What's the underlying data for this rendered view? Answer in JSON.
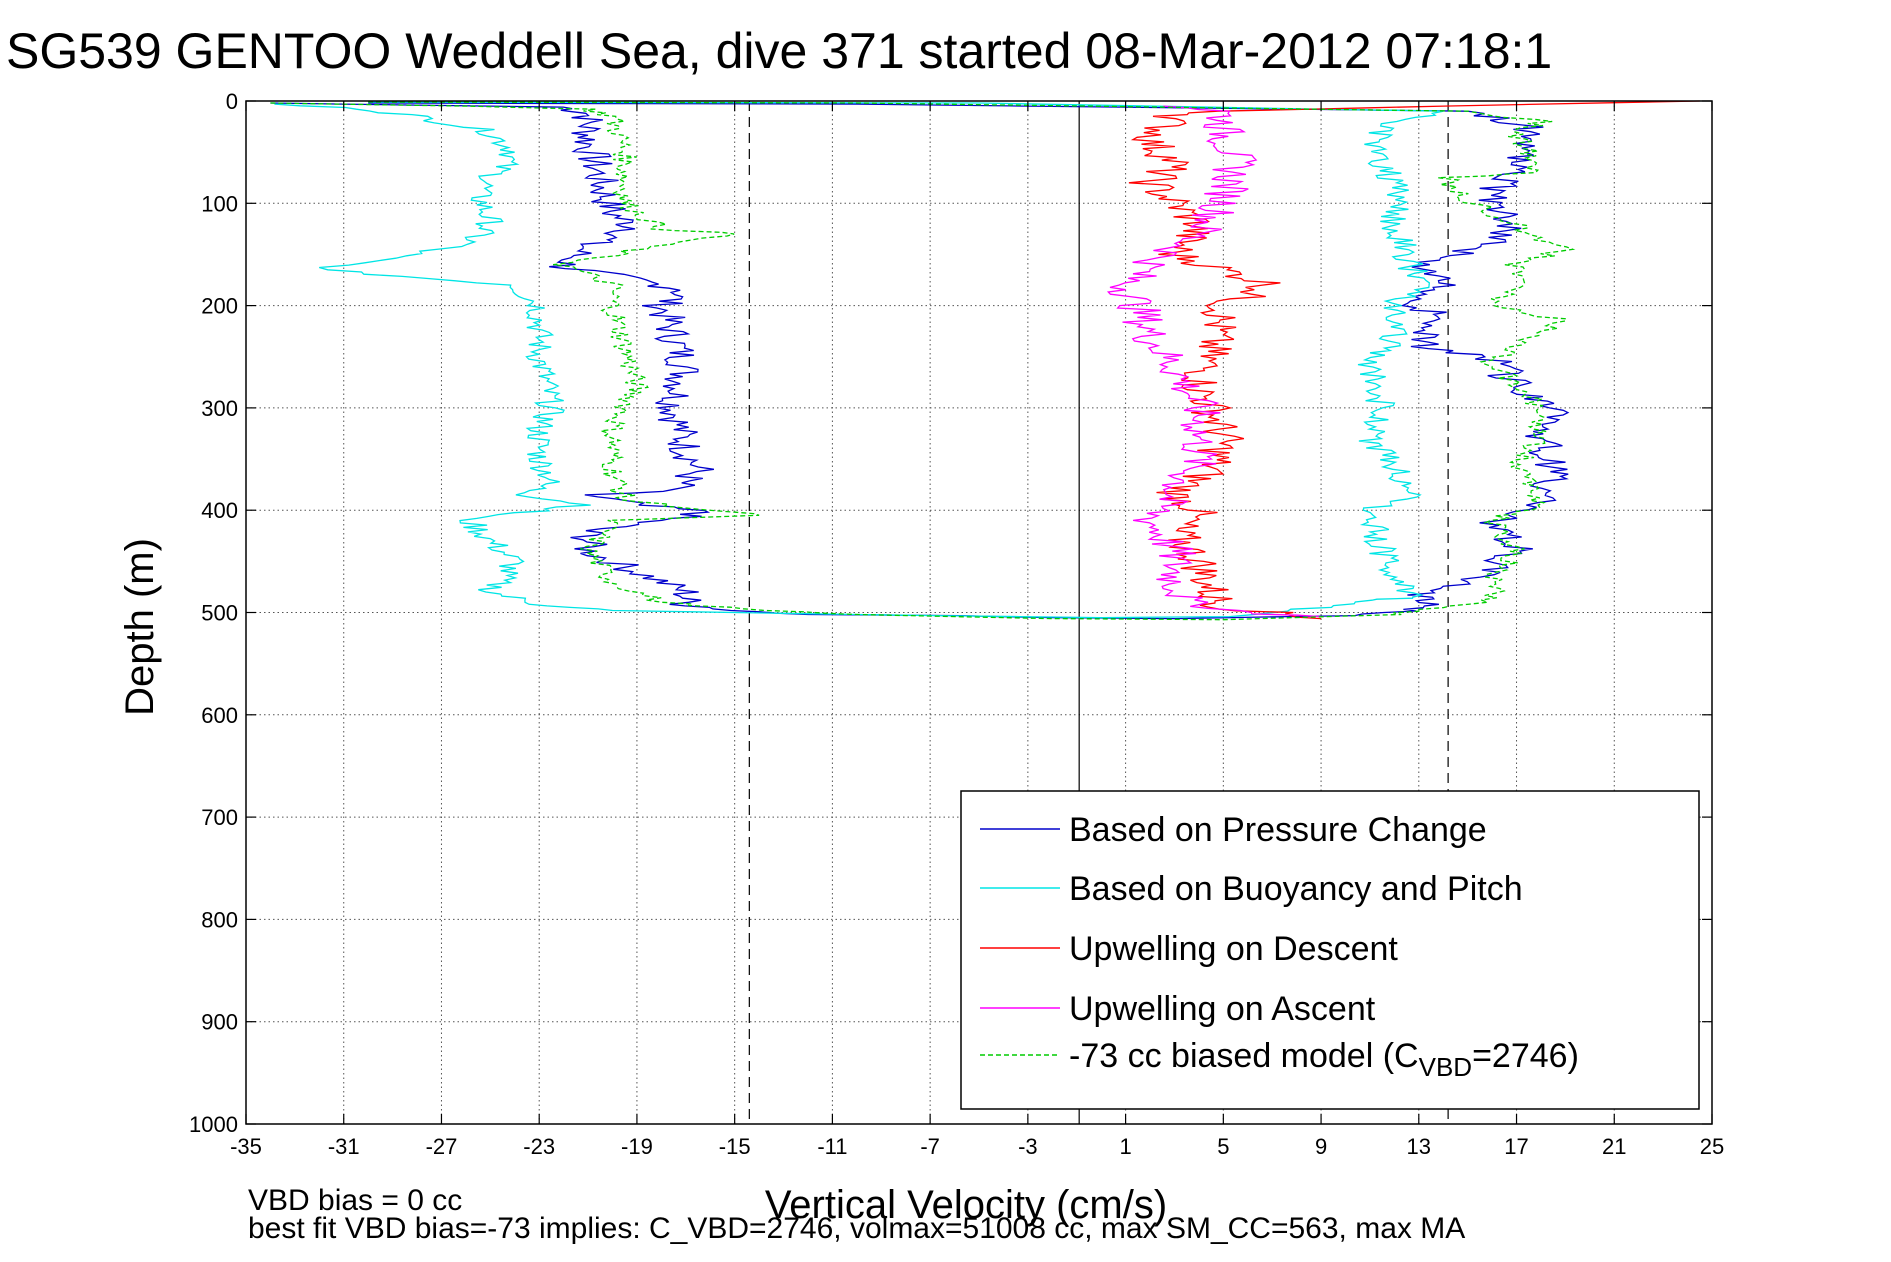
{
  "chart_data": {
    "type": "line",
    "title": "SG539 GENTOO Weddell Sea, dive 371 started 08-Mar-2012 07:18:1",
    "xlabel": "Vertical Velocity (cm/s)",
    "ylabel": "Depth (m)",
    "xlim": [
      -35,
      25
    ],
    "ylim": [
      0,
      1000
    ],
    "y_reversed": true,
    "grid": true,
    "xticks": [
      "-35",
      "-31",
      "-27",
      "-23",
      "-19",
      "-15",
      "-11",
      "-7",
      "-3",
      "1",
      "5",
      "9",
      "13",
      "17",
      "21",
      "25"
    ],
    "yticks": [
      "0",
      "100",
      "200",
      "300",
      "400",
      "500",
      "600",
      "700",
      "800",
      "900",
      "1000"
    ],
    "legend": {
      "placement": "lower-right",
      "entries": [
        {
          "text": "Based on Pressure Change",
          "color": "#0000cc",
          "dash": false
        },
        {
          "text": "Based on Buoyancy and Pitch",
          "color": "#00e5e5",
          "dash": false
        },
        {
          "text": "Upwelling on Descent",
          "color": "#ff0000",
          "dash": false
        },
        {
          "text": "Upwelling on Ascent",
          "color": "#ff00ff",
          "dash": false
        },
        {
          "text": "-73 cc biased model (C",
          "sub": "VBD",
          "after": "=2746)",
          "color": "#00cc00",
          "dash": true
        }
      ]
    },
    "reference_lines": {
      "solid_x": [
        -0.9
      ],
      "dashed_x": [
        -14.4,
        14.2
      ]
    },
    "series": [
      {
        "color": "#0000cc",
        "dash": false,
        "wiggle": 0.8,
        "points": [
          [
            -34,
            2
          ],
          [
            -28,
            4
          ],
          [
            -22,
            6
          ],
          [
            -21,
            12
          ],
          [
            -21,
            40
          ],
          [
            -20.5,
            80
          ],
          [
            -20,
            110
          ],
          [
            -19,
            125
          ],
          [
            -21,
            140
          ],
          [
            -22,
            162
          ],
          [
            -19,
            175
          ],
          [
            -17,
            185
          ],
          [
            -18,
            200
          ],
          [
            -17.5,
            230
          ],
          [
            -17,
            260
          ],
          [
            -17.5,
            300
          ],
          [
            -17,
            340
          ],
          [
            -16.5,
            360
          ],
          [
            -17.5,
            380
          ],
          [
            -21,
            385
          ],
          [
            -19,
            395
          ],
          [
            -16,
            402
          ],
          [
            -21,
            420
          ],
          [
            -21,
            440
          ],
          [
            -19,
            460
          ],
          [
            -17,
            480
          ],
          [
            -17,
            492
          ],
          [
            -15,
            498
          ],
          [
            -12,
            502
          ],
          [
            -5,
            503
          ],
          [
            -2,
            505
          ],
          [
            3,
            506
          ],
          [
            10,
            503
          ],
          [
            13,
            497
          ],
          [
            14,
            492
          ],
          [
            13,
            485
          ],
          [
            15,
            470
          ],
          [
            17,
            440
          ],
          [
            16,
            410
          ],
          [
            18,
            395
          ],
          [
            18.5,
            360
          ],
          [
            18,
            330
          ],
          [
            19,
            300
          ],
          [
            17,
            280
          ],
          [
            16,
            250
          ],
          [
            13,
            240
          ],
          [
            14,
            215
          ],
          [
            13,
            200
          ],
          [
            14,
            180
          ],
          [
            13,
            160
          ],
          [
            16,
            140
          ],
          [
            17,
            120
          ],
          [
            16,
            90
          ],
          [
            17,
            60
          ],
          [
            18,
            30
          ],
          [
            15,
            10
          ],
          [
            -10,
            3
          ],
          [
            -30,
            2
          ]
        ]
      },
      {
        "color": "#00e5e5",
        "dash": false,
        "wiggle": 0.6,
        "points": [
          [
            -34,
            3
          ],
          [
            -30,
            8
          ],
          [
            -28,
            15
          ],
          [
            -25,
            30
          ],
          [
            -24,
            50
          ],
          [
            -25.5,
            90
          ],
          [
            -25,
            120
          ],
          [
            -26,
            140
          ],
          [
            -32,
            165
          ],
          [
            -24,
            180
          ],
          [
            -23,
            200
          ],
          [
            -23,
            250
          ],
          [
            -22.5,
            300
          ],
          [
            -23,
            320
          ],
          [
            -23,
            350
          ],
          [
            -22.5,
            370
          ],
          [
            -23.5,
            385
          ],
          [
            -21,
            395
          ],
          [
            -26,
            408
          ],
          [
            -25,
            430
          ],
          [
            -24,
            450
          ],
          [
            -25,
            480
          ],
          [
            -23,
            492
          ],
          [
            -20,
            498
          ],
          [
            -10,
            502
          ],
          [
            0,
            505
          ],
          [
            5,
            504
          ],
          [
            9,
            495
          ],
          [
            11,
            488
          ],
          [
            13,
            485
          ],
          [
            12,
            470
          ],
          [
            11.5,
            440
          ],
          [
            11,
            400
          ],
          [
            13,
            385
          ],
          [
            12,
            360
          ],
          [
            11,
            330
          ],
          [
            11.5,
            300
          ],
          [
            11,
            260
          ],
          [
            12,
            230
          ],
          [
            12,
            200
          ],
          [
            13,
            180
          ],
          [
            12.5,
            150
          ],
          [
            12,
            120
          ],
          [
            12,
            80
          ],
          [
            11,
            40
          ],
          [
            12,
            20
          ],
          [
            14,
            10
          ],
          [
            -5,
            2
          ],
          [
            -30,
            1
          ]
        ]
      },
      {
        "color": "#ff0000",
        "dash": false,
        "wiggle": 0.9,
        "points": [
          [
            24.5,
            0
          ],
          [
            14,
            5
          ],
          [
            5,
            10
          ],
          [
            3,
            15
          ],
          [
            2,
            40
          ],
          [
            3,
            60
          ],
          [
            2,
            80
          ],
          [
            3,
            100
          ],
          [
            4,
            120
          ],
          [
            3,
            150
          ],
          [
            5,
            165
          ],
          [
            7,
            180
          ],
          [
            5,
            200
          ],
          [
            4.5,
            240
          ],
          [
            4,
            280
          ],
          [
            4.5,
            300
          ],
          [
            5,
            330
          ],
          [
            4.5,
            360
          ],
          [
            3,
            385
          ],
          [
            4,
            400
          ],
          [
            3,
            420
          ],
          [
            4,
            450
          ],
          [
            4.5,
            480
          ],
          [
            5,
            495
          ],
          [
            7,
            500
          ],
          [
            9,
            506
          ]
        ]
      },
      {
        "color": "#ff00ff",
        "dash": false,
        "wiggle": 0.9,
        "points": [
          [
            3,
            5
          ],
          [
            5,
            10
          ],
          [
            5,
            30
          ],
          [
            5.5,
            60
          ],
          [
            5,
            100
          ],
          [
            4,
            130
          ],
          [
            2,
            160
          ],
          [
            1,
            180
          ],
          [
            1.5,
            200
          ],
          [
            2,
            230
          ],
          [
            3,
            260
          ],
          [
            4,
            300
          ],
          [
            4,
            350
          ],
          [
            3,
            380
          ],
          [
            2,
            410
          ],
          [
            3,
            440
          ],
          [
            3,
            470
          ],
          [
            3.5,
            490
          ],
          [
            6,
            500
          ],
          [
            9,
            504
          ]
        ]
      },
      {
        "color": "#00cc00",
        "dash": true,
        "wiggle": 0.5,
        "points": [
          [
            -34,
            2
          ],
          [
            -26,
            5
          ],
          [
            -21,
            8
          ],
          [
            -20,
            15
          ],
          [
            -19.5,
            50
          ],
          [
            -19.5,
            100
          ],
          [
            -18,
            125
          ],
          [
            -15,
            130
          ],
          [
            -18,
            140
          ],
          [
            -22,
            160
          ],
          [
            -20,
            180
          ],
          [
            -20,
            200
          ],
          [
            -19.5,
            240
          ],
          [
            -19,
            280
          ],
          [
            -20,
            320
          ],
          [
            -20,
            360
          ],
          [
            -19.5,
            390
          ],
          [
            -16,
            400
          ],
          [
            -14,
            405
          ],
          [
            -20,
            410
          ],
          [
            -21,
            440
          ],
          [
            -20,
            470
          ],
          [
            -18,
            490
          ],
          [
            -14,
            498
          ],
          [
            -10,
            502
          ],
          [
            -2,
            506
          ],
          [
            5,
            507
          ],
          [
            12,
            502
          ],
          [
            13,
            497
          ],
          [
            16,
            490
          ],
          [
            16,
            470
          ],
          [
            17,
            440
          ],
          [
            16,
            410
          ],
          [
            18,
            395
          ],
          [
            17,
            360
          ],
          [
            18,
            330
          ],
          [
            18,
            300
          ],
          [
            17,
            280
          ],
          [
            16,
            255
          ],
          [
            19,
            215
          ],
          [
            16,
            200
          ],
          [
            17,
            180
          ],
          [
            17,
            160
          ],
          [
            19,
            145
          ],
          [
            16,
            110
          ],
          [
            15,
            95
          ],
          [
            14,
            75
          ],
          [
            18,
            70
          ],
          [
            17,
            30
          ],
          [
            18,
            20
          ],
          [
            15,
            10
          ],
          [
            -10,
            2
          ],
          [
            -30,
            1
          ]
        ]
      }
    ]
  },
  "footer": {
    "line1": "VBD bias = 0 cc",
    "line2": "best fit VBD bias=-73 implies: C_VBD=2746, volmax=51008 cc, max SM_CC=563, max MA"
  }
}
